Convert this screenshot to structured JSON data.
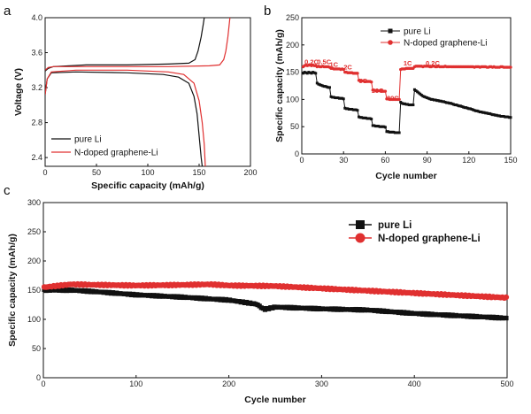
{
  "colors": {
    "pure": "#111111",
    "doped": "#e03030"
  },
  "chart_data": [
    {
      "panel": "a",
      "type": "line",
      "xlabel": "Specific capacity (mAh/g)",
      "ylabel": "Voltage (V)",
      "xlim": [
        0,
        200
      ],
      "ylim": [
        2.3,
        4.0
      ],
      "xticks": [
        0,
        50,
        100,
        150,
        200
      ],
      "yticks": [
        2.4,
        2.8,
        3.2,
        3.6,
        4.0
      ],
      "legend": [
        "pure Li",
        "N-doped graphene-Li"
      ],
      "series": [
        {
          "name": "pure Li",
          "segments": [
            [
              [
                0,
                3.39
              ],
              [
                3,
                3.42
              ],
              [
                8,
                3.44
              ],
              [
                40,
                3.46
              ],
              [
                80,
                3.46
              ],
              [
                120,
                3.47
              ],
              [
                140,
                3.48
              ],
              [
                146,
                3.52
              ],
              [
                149,
                3.62
              ],
              [
                152,
                3.78
              ],
              [
                154,
                3.92
              ],
              [
                155,
                4.0
              ]
            ],
            [
              [
                0,
                3.12
              ],
              [
                2,
                3.3
              ],
              [
                6,
                3.37
              ],
              [
                30,
                3.38
              ],
              [
                80,
                3.37
              ],
              [
                115,
                3.35
              ],
              [
                130,
                3.32
              ],
              [
                140,
                3.25
              ],
              [
                145,
                3.1
              ],
              [
                148,
                2.9
              ],
              [
                150,
                2.65
              ],
              [
                152,
                2.4
              ],
              [
                153,
                2.3
              ]
            ]
          ]
        },
        {
          "name": "N-doped graphene-Li",
          "segments": [
            [
              [
                0,
                3.4
              ],
              [
                3,
                3.43
              ],
              [
                8,
                3.44
              ],
              [
                60,
                3.44
              ],
              [
                120,
                3.44
              ],
              [
                160,
                3.45
              ],
              [
                170,
                3.46
              ],
              [
                174,
                3.52
              ],
              [
                176,
                3.62
              ],
              [
                178,
                3.78
              ],
              [
                180,
                4.0
              ]
            ],
            [
              [
                0,
                3.12
              ],
              [
                2,
                3.3
              ],
              [
                6,
                3.38
              ],
              [
                30,
                3.4
              ],
              [
                80,
                3.4
              ],
              [
                120,
                3.38
              ],
              [
                135,
                3.35
              ],
              [
                145,
                3.25
              ],
              [
                150,
                3.05
              ],
              [
                153,
                2.8
              ],
              [
                155,
                2.55
              ],
              [
                156,
                2.3
              ]
            ]
          ]
        }
      ]
    },
    {
      "panel": "b",
      "type": "scatter",
      "xlabel": "Cycle number",
      "ylabel": "Specific capacity (mAh/g)",
      "xlim": [
        0,
        150
      ],
      "ylim": [
        0,
        250
      ],
      "xticks": [
        0,
        30,
        60,
        90,
        120,
        150
      ],
      "yticks": [
        0,
        50,
        100,
        150,
        200,
        250
      ],
      "legend": [
        "pure Li",
        "N-doped graphene-Li"
      ],
      "rate_labels": [
        {
          "text": "0.2C",
          "x": 2,
          "y": 165
        },
        {
          "text": "0.5C",
          "x": 11,
          "y": 165
        },
        {
          "text": "1C",
          "x": 20,
          "y": 160
        },
        {
          "text": "2C",
          "x": 30,
          "y": 155
        },
        {
          "text": "5C",
          "x": 41,
          "y": 130
        },
        {
          "text": "10C",
          "x": 50,
          "y": 112
        },
        {
          "text": "20C",
          "x": 61,
          "y": 98
        },
        {
          "text": "1C",
          "x": 73,
          "y": 162
        },
        {
          "text": "0.2C",
          "x": 89,
          "y": 162
        }
      ],
      "series": [
        {
          "name": "pure Li",
          "x_start": 1,
          "values": [
            148,
            150,
            149,
            148,
            150,
            149,
            148,
            150,
            149,
            148,
            130,
            128,
            127,
            126,
            125,
            124,
            124,
            123,
            122,
            122,
            105,
            104,
            104,
            103,
            103,
            103,
            102,
            102,
            102,
            101,
            84,
            83,
            83,
            82,
            82,
            82,
            81,
            81,
            81,
            80,
            68,
            67,
            67,
            66,
            66,
            66,
            65,
            65,
            65,
            64,
            52,
            52,
            51,
            51,
            51,
            50,
            50,
            50,
            50,
            49,
            41,
            41,
            40,
            40,
            40,
            40,
            39,
            39,
            39,
            39,
            95,
            93,
            92,
            92,
            91,
            91,
            90,
            90,
            90,
            90,
            118,
            116,
            114,
            112,
            110,
            108,
            106,
            105,
            104,
            103,
            102,
            101,
            100,
            100,
            99,
            99,
            98,
            98,
            97,
            97,
            96,
            96,
            95,
            94,
            94,
            93,
            93,
            92,
            91,
            90,
            90,
            89,
            88,
            88,
            87,
            86,
            85,
            85,
            84,
            83,
            83,
            82,
            81,
            80,
            79,
            79,
            78,
            77,
            77,
            76,
            76,
            75,
            75,
            74,
            74,
            73,
            72,
            72,
            71,
            71,
            70,
            70,
            69,
            69,
            69,
            68,
            68,
            68,
            67,
            67
          ]
        },
        {
          "name": "N-doped graphene-Li",
          "x_start": 1,
          "values": [
            160,
            162,
            163,
            162,
            163,
            163,
            162,
            163,
            162,
            162,
            160,
            161,
            160,
            160,
            161,
            160,
            160,
            160,
            160,
            159,
            157,
            157,
            156,
            156,
            156,
            156,
            156,
            155,
            156,
            155,
            150,
            150,
            149,
            149,
            149,
            149,
            148,
            148,
            148,
            148,
            135,
            134,
            134,
            134,
            133,
            133,
            133,
            133,
            133,
            132,
            117,
            117,
            116,
            116,
            116,
            116,
            116,
            115,
            115,
            115,
            101,
            101,
            100,
            100,
            100,
            100,
            100,
            100,
            100,
            100,
            155,
            156,
            156,
            156,
            157,
            157,
            157,
            157,
            157,
            157,
            160,
            161,
            161,
            161,
            161,
            161,
            160,
            161,
            161,
            161,
            161,
            160,
            160,
            161,
            161,
            160,
            160,
            161,
            160,
            160,
            160,
            160,
            161,
            160,
            160,
            160,
            160,
            160,
            160,
            160,
            160,
            160,
            160,
            160,
            160,
            160,
            160,
            160,
            160,
            160,
            160,
            160,
            160,
            159,
            160,
            160,
            160,
            159,
            160,
            160,
            160,
            160,
            159,
            159,
            160,
            160,
            159,
            160,
            159,
            159,
            159,
            159,
            160,
            160,
            159,
            159,
            159,
            159,
            159,
            159
          ]
        }
      ]
    },
    {
      "panel": "c",
      "type": "scatter",
      "xlabel": "Cycle number",
      "ylabel": "Specific capacity (mAh/g)",
      "xlim": [
        0,
        500
      ],
      "ylim": [
        0,
        300
      ],
      "xticks": [
        0,
        100,
        200,
        300,
        400,
        500
      ],
      "yticks": [
        0,
        50,
        100,
        150,
        200,
        250,
        300
      ],
      "legend": [
        "pure Li",
        "N-doped graphene-Li"
      ],
      "series": [
        {
          "name": "pure Li",
          "anchors": [
            [
              1,
              150
            ],
            [
              30,
              150
            ],
            [
              60,
              147
            ],
            [
              100,
              142
            ],
            [
              150,
              138
            ],
            [
              200,
              133
            ],
            [
              230,
              126
            ],
            [
              238,
              117
            ],
            [
              250,
              121
            ],
            [
              300,
              118
            ],
            [
              350,
              116
            ],
            [
              400,
              110
            ],
            [
              450,
              106
            ],
            [
              500,
              102
            ]
          ]
        },
        {
          "name": "N-doped graphene-Li",
          "anchors": [
            [
              1,
              155
            ],
            [
              30,
              160
            ],
            [
              60,
              159
            ],
            [
              100,
              158
            ],
            [
              150,
              159
            ],
            [
              180,
              160
            ],
            [
              200,
              158
            ],
            [
              250,
              157
            ],
            [
              300,
              153
            ],
            [
              350,
              149
            ],
            [
              400,
              145
            ],
            [
              450,
              141
            ],
            [
              500,
              137
            ]
          ]
        }
      ]
    }
  ],
  "panel_labels": {
    "a": "a",
    "b": "b",
    "c": "c"
  }
}
